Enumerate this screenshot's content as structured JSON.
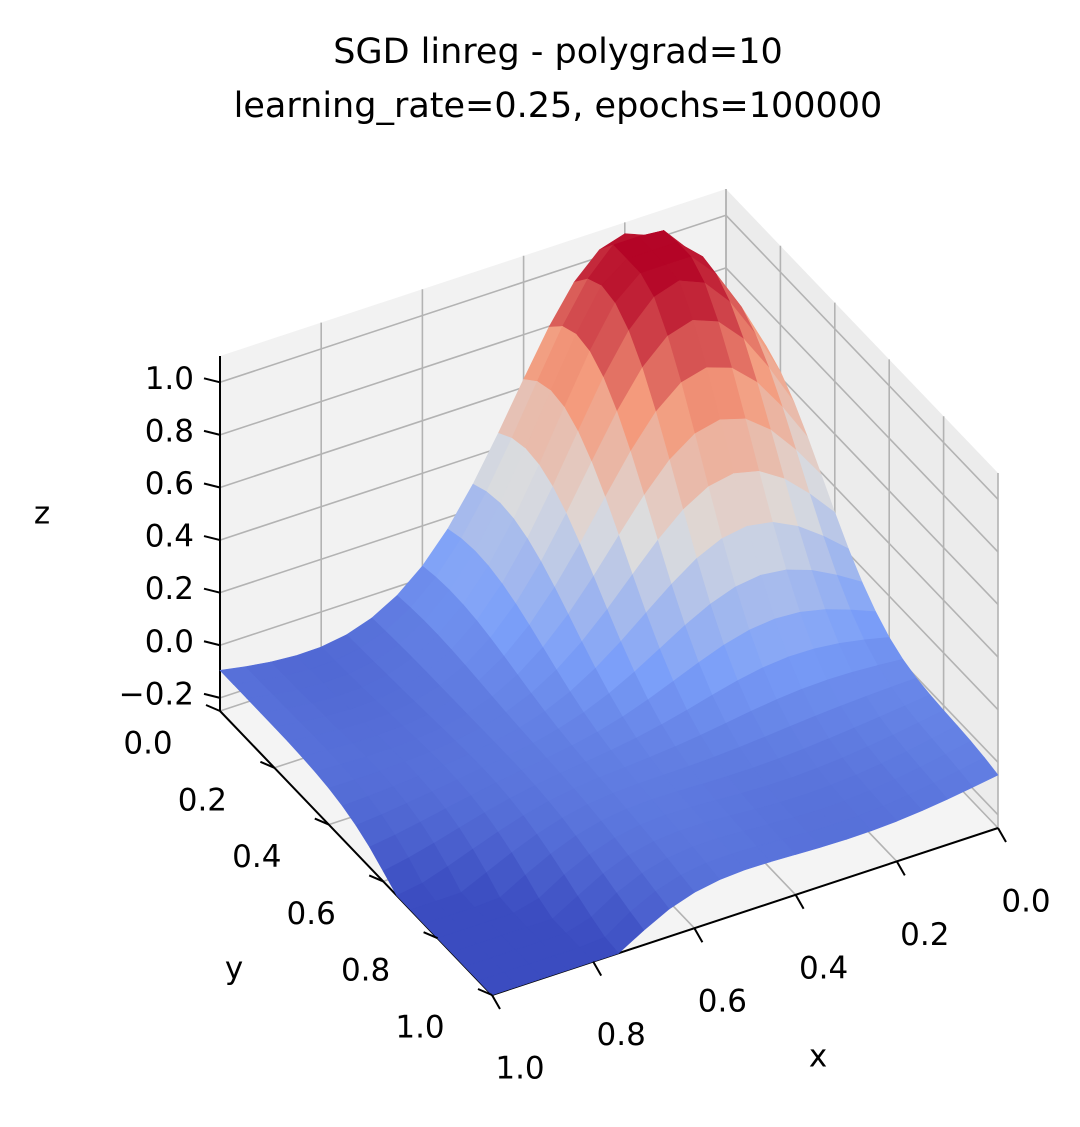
{
  "chart_data": {
    "type": "surface",
    "title": "SGD linreg - polygrad=10",
    "subtitle": "learning_rate=0.25, epochs=100000",
    "xlabel": "x",
    "ylabel": "y",
    "zlabel": "z",
    "x_ticks": [
      "0.0",
      "0.2",
      "0.4",
      "0.6",
      "0.8",
      "1.0"
    ],
    "y_ticks": [
      "0.0",
      "0.2",
      "0.4",
      "0.6",
      "0.8",
      "1.0"
    ],
    "z_ticks": [
      "−0.2",
      "0.0",
      "0.2",
      "0.4",
      "0.6",
      "0.8",
      "1.0"
    ],
    "xlim": [
      0,
      1
    ],
    "ylim": [
      0,
      1
    ],
    "zlim": [
      -0.25,
      1.1
    ],
    "grid": true,
    "colormap": "coolwarm",
    "grid_points": 20,
    "surface": {
      "description": "fitted polynomial surface",
      "peak": {
        "x": 0.2,
        "y": 0.15,
        "z": 1.1
      },
      "min_corner": {
        "x": 1.0,
        "y": 1.0,
        "z": -0.25
      }
    }
  }
}
